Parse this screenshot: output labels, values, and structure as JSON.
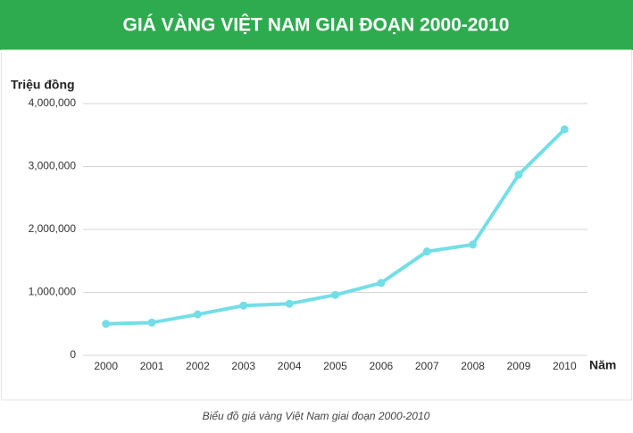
{
  "chart_data": {
    "type": "line",
    "title": "GIÁ VÀNG VIỆT NAM GIAI ĐOẠN 2000-2010",
    "y_label": "Triệu đồng",
    "x_label": "Năm",
    "caption": "Biểu đồ giá vàng Việt Nam giai đoạn 2000-2010",
    "categories": [
      "2000",
      "2001",
      "2002",
      "2003",
      "2004",
      "2005",
      "2006",
      "2007",
      "2008",
      "2009",
      "2010"
    ],
    "values": [
      500000,
      520000,
      650000,
      790000,
      820000,
      960000,
      1150000,
      1650000,
      1760000,
      2870000,
      3590000
    ],
    "color": "#74dee6",
    "ylim": [
      0,
      4000000
    ],
    "yticks": [
      0,
      {
        "value": 1000000,
        "label": "1,000,000"
      },
      {
        "value": 2000000,
        "label": "2,000,000"
      },
      {
        "value": 3000000,
        "label": "3,000,000"
      },
      {
        "value": 4000000,
        "label": "4,000,000"
      }
    ],
    "grid": true
  }
}
